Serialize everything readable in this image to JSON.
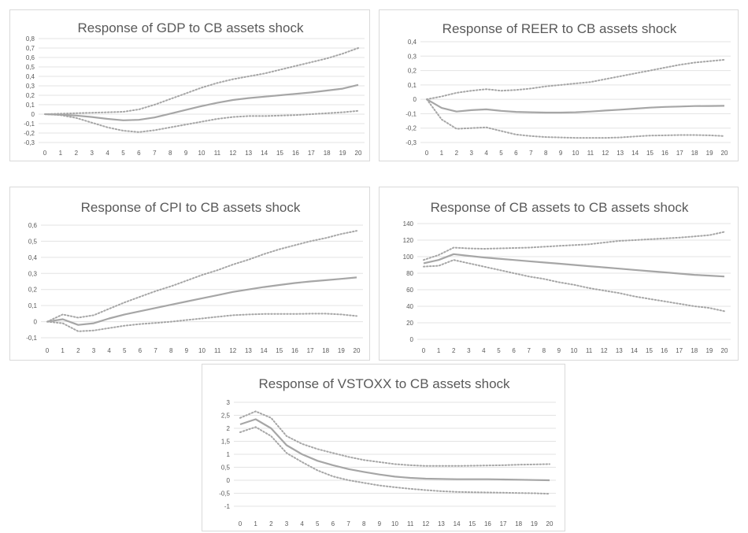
{
  "chart_data": [
    {
      "type": "line",
      "title": "Response of GDP to CB assets shock",
      "x": [
        0,
        1,
        2,
        3,
        4,
        5,
        6,
        7,
        8,
        9,
        10,
        11,
        12,
        13,
        14,
        15,
        16,
        17,
        18,
        19,
        20
      ],
      "ylim": [
        -0.3,
        0.8
      ],
      "yticks": [
        0.8,
        0.7,
        0.6,
        0.5,
        0.4,
        0.3,
        0.2,
        0.1,
        0,
        -0.1,
        -0.2,
        -0.3
      ],
      "ytick_labels": [
        "0,8",
        "0,7",
        "0,6",
        "0,5",
        "0,4",
        "0,3",
        "0,2",
        "0,1",
        "0",
        "-0,1",
        "-0,2",
        "-0,3"
      ],
      "grid": true,
      "series": [
        {
          "role": "response",
          "line_style": "solid",
          "values": [
            0,
            -0.005,
            -0.015,
            -0.03,
            -0.05,
            -0.065,
            -0.06,
            -0.035,
            0.005,
            0.045,
            0.085,
            0.12,
            0.15,
            0.17,
            0.185,
            0.2,
            0.215,
            0.23,
            0.25,
            0.27,
            0.31
          ]
        },
        {
          "role": "upper band",
          "line_style": "dotted",
          "values": [
            0,
            0.005,
            0.01,
            0.015,
            0.02,
            0.025,
            0.05,
            0.1,
            0.16,
            0.22,
            0.28,
            0.33,
            0.37,
            0.4,
            0.43,
            0.47,
            0.51,
            0.55,
            0.59,
            0.64,
            0.7
          ]
        },
        {
          "role": "lower band",
          "line_style": "dotted",
          "values": [
            0,
            -0.01,
            -0.04,
            -0.09,
            -0.14,
            -0.175,
            -0.19,
            -0.17,
            -0.14,
            -0.11,
            -0.08,
            -0.05,
            -0.03,
            -0.02,
            -0.02,
            -0.015,
            -0.01,
            0,
            0.01,
            0.02,
            0.035
          ]
        }
      ]
    },
    {
      "type": "line",
      "title": "Response of REER to CB assets shock",
      "x": [
        0,
        1,
        2,
        3,
        4,
        5,
        6,
        7,
        8,
        9,
        10,
        11,
        12,
        13,
        14,
        15,
        16,
        17,
        18,
        19,
        20
      ],
      "ylim": [
        -0.3,
        0.4
      ],
      "yticks": [
        0.4,
        0.3,
        0.2,
        0.1,
        0,
        -0.1,
        -0.2,
        -0.3
      ],
      "ytick_labels": [
        "0,4",
        "0,3",
        "0,2",
        "0,1",
        "0",
        "-0,1",
        "-0,2",
        "-0,3"
      ],
      "grid": true,
      "series": [
        {
          "role": "response",
          "line_style": "solid",
          "values": [
            0,
            -0.06,
            -0.085,
            -0.075,
            -0.07,
            -0.08,
            -0.087,
            -0.09,
            -0.092,
            -0.092,
            -0.09,
            -0.085,
            -0.078,
            -0.072,
            -0.065,
            -0.058,
            -0.053,
            -0.05,
            -0.047,
            -0.046,
            -0.045
          ]
        },
        {
          "role": "upper band",
          "line_style": "dotted",
          "values": [
            0,
            0.02,
            0.045,
            0.06,
            0.07,
            0.06,
            0.065,
            0.075,
            0.09,
            0.1,
            0.11,
            0.12,
            0.14,
            0.16,
            0.18,
            0.2,
            0.22,
            0.24,
            0.255,
            0.265,
            0.275
          ]
        },
        {
          "role": "lower band",
          "line_style": "dotted",
          "values": [
            0,
            -0.14,
            -0.205,
            -0.2,
            -0.195,
            -0.22,
            -0.245,
            -0.255,
            -0.262,
            -0.265,
            -0.268,
            -0.268,
            -0.268,
            -0.265,
            -0.258,
            -0.252,
            -0.25,
            -0.248,
            -0.248,
            -0.25,
            -0.255
          ]
        }
      ]
    },
    {
      "type": "line",
      "title": "Response of CPI to CB assets shock",
      "x": [
        0,
        1,
        2,
        3,
        4,
        5,
        6,
        7,
        8,
        9,
        10,
        11,
        12,
        13,
        14,
        15,
        16,
        17,
        18,
        19,
        20
      ],
      "ylim": [
        -0.1,
        0.6
      ],
      "yticks": [
        0.6,
        0.5,
        0.4,
        0.3,
        0.2,
        0.1,
        0,
        -0.1
      ],
      "ytick_labels": [
        "0,6",
        "0,5",
        "0,4",
        "0,3",
        "0,2",
        "0,1",
        "0",
        "-0,1"
      ],
      "grid": true,
      "series": [
        {
          "role": "response",
          "line_style": "solid",
          "values": [
            0,
            0.015,
            -0.02,
            -0.01,
            0.02,
            0.045,
            0.065,
            0.085,
            0.105,
            0.125,
            0.145,
            0.165,
            0.185,
            0.2,
            0.215,
            0.228,
            0.24,
            0.25,
            0.258,
            0.266,
            0.275
          ]
        },
        {
          "role": "upper band",
          "line_style": "dotted",
          "values": [
            0,
            0.045,
            0.025,
            0.04,
            0.08,
            0.12,
            0.155,
            0.19,
            0.22,
            0.255,
            0.29,
            0.32,
            0.355,
            0.385,
            0.42,
            0.45,
            0.475,
            0.5,
            0.52,
            0.545,
            0.565
          ]
        },
        {
          "role": "lower band",
          "line_style": "dotted",
          "values": [
            0,
            -0.01,
            -0.06,
            -0.055,
            -0.04,
            -0.025,
            -0.015,
            -0.008,
            0,
            0.01,
            0.02,
            0.03,
            0.04,
            0.045,
            0.048,
            0.048,
            0.048,
            0.05,
            0.05,
            0.045,
            0.035
          ]
        }
      ]
    },
    {
      "type": "line",
      "title": "Response of CB assets to CB assets shock",
      "x": [
        0,
        1,
        2,
        3,
        4,
        5,
        6,
        7,
        8,
        9,
        10,
        11,
        12,
        13,
        14,
        15,
        16,
        17,
        18,
        19,
        20
      ],
      "ylim": [
        0,
        140
      ],
      "yticks": [
        140,
        120,
        100,
        80,
        60,
        40,
        20,
        0
      ],
      "ytick_labels": [
        "140",
        "120",
        "100",
        "80",
        "60",
        "40",
        "20",
        "0"
      ],
      "grid": true,
      "series": [
        {
          "role": "response",
          "line_style": "solid",
          "values": [
            92,
            96,
            103,
            101,
            99,
            97.5,
            96,
            94.5,
            93,
            91.5,
            90,
            88.5,
            87,
            85.5,
            84,
            82.5,
            81,
            79.5,
            78,
            77,
            76
          ]
        },
        {
          "role": "upper band",
          "line_style": "dotted",
          "values": [
            96,
            102,
            111,
            110,
            109.5,
            110,
            110.5,
            111,
            112,
            113,
            114,
            115,
            117,
            119,
            120,
            121,
            122,
            123,
            124.5,
            126,
            130
          ]
        },
        {
          "role": "lower band",
          "line_style": "dotted",
          "values": [
            88,
            89,
            96,
            92,
            88,
            84,
            80,
            76,
            73,
            69,
            66,
            62,
            59,
            56,
            52,
            49,
            46,
            43,
            40,
            38,
            34
          ]
        }
      ]
    },
    {
      "type": "line",
      "title": "Response of VSTOXX to CB assets shock",
      "x": [
        0,
        1,
        2,
        3,
        4,
        5,
        6,
        7,
        8,
        9,
        10,
        11,
        12,
        13,
        14,
        15,
        16,
        17,
        18,
        19,
        20
      ],
      "ylim": [
        -1,
        3
      ],
      "yticks": [
        3,
        2.5,
        2,
        1.5,
        1,
        0.5,
        0,
        -0.5,
        -1
      ],
      "ytick_labels": [
        "3",
        "2,5",
        "2",
        "1,5",
        "1",
        "0,5",
        "0",
        "-0,5",
        "-1"
      ],
      "grid": true,
      "series": [
        {
          "role": "response",
          "line_style": "solid",
          "values": [
            2.15,
            2.35,
            2.0,
            1.35,
            1.0,
            0.75,
            0.58,
            0.43,
            0.32,
            0.22,
            0.14,
            0.09,
            0.06,
            0.05,
            0.04,
            0.04,
            0.04,
            0.03,
            0.02,
            0.01,
            0.0
          ]
        },
        {
          "role": "upper band",
          "line_style": "dotted",
          "values": [
            2.4,
            2.65,
            2.4,
            1.7,
            1.4,
            1.2,
            1.05,
            0.9,
            0.78,
            0.7,
            0.62,
            0.58,
            0.55,
            0.55,
            0.55,
            0.56,
            0.57,
            0.58,
            0.6,
            0.61,
            0.62
          ]
        },
        {
          "role": "lower band",
          "line_style": "dotted",
          "values": [
            1.85,
            2.05,
            1.7,
            1.05,
            0.7,
            0.38,
            0.15,
            0.0,
            -0.1,
            -0.2,
            -0.27,
            -0.33,
            -0.38,
            -0.42,
            -0.45,
            -0.46,
            -0.47,
            -0.48,
            -0.49,
            -0.5,
            -0.52
          ]
        }
      ]
    }
  ]
}
